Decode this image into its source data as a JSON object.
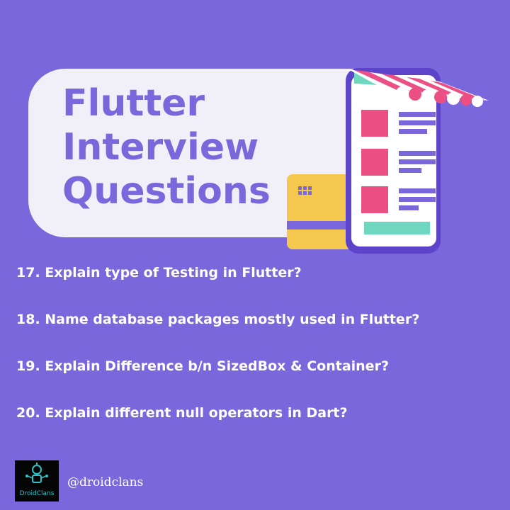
{
  "title": {
    "lines": [
      "Flutter",
      "Interview",
      "Questions"
    ]
  },
  "questions": [
    "17. Explain type of Testing in Flutter?",
    "18. Name database packages mostly used in Flutter?",
    "19. Explain Difference b/n SizedBox & Container?",
    "20. Explain different null operators in Dart?"
  ],
  "brand": {
    "logo_text": "DroidClans",
    "handle": "@droidclans"
  },
  "colors": {
    "background": "#7a67dc",
    "card": "#f1eff7",
    "accent_pink": "#ec4f84",
    "accent_teal": "#6fd7c0",
    "card_yellow": "#f4c84f"
  },
  "icons": {
    "illustration": "shop-phone-illustration",
    "logo": "droid-robot-icon"
  }
}
